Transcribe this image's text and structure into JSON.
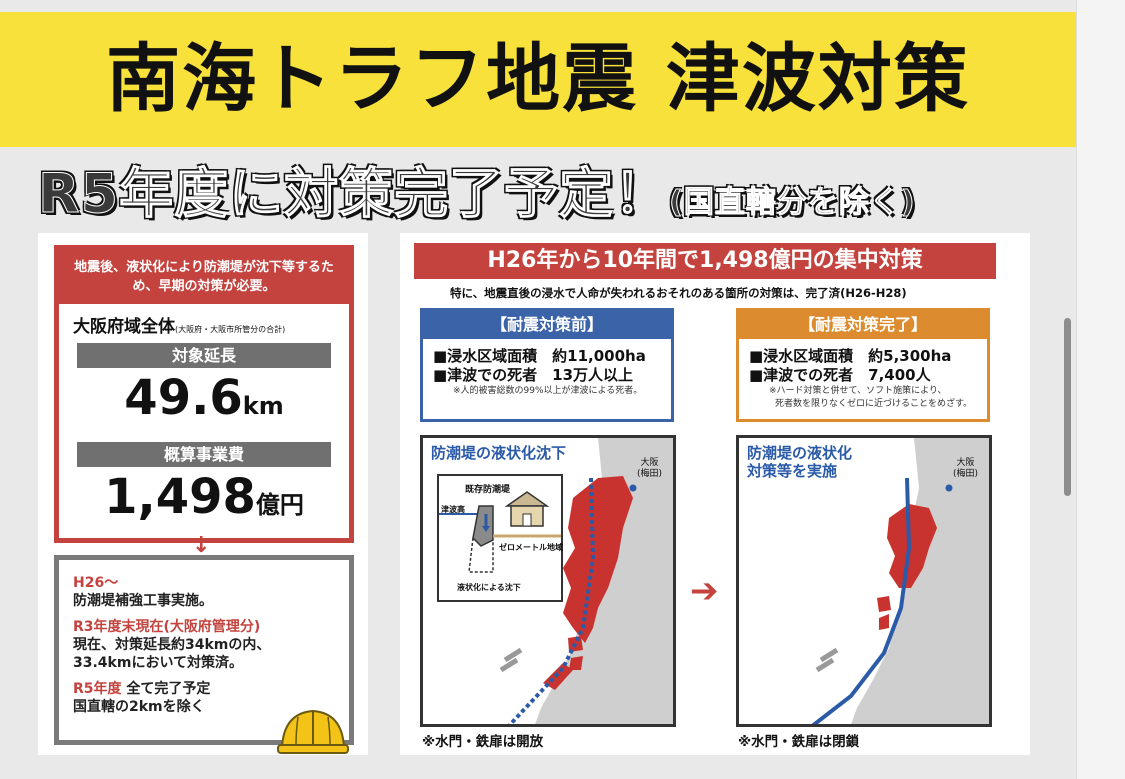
{
  "title": "南海トラフ地震 津波対策",
  "subtitle": {
    "main": "R5年度に対策完了予定！",
    "note": "(国直轄分を除く)"
  },
  "left": {
    "header": "地震後、液状化により防潮堤が沈下等するため、早期の対策が必要。",
    "region": "大阪府域全体",
    "region_note": "(大阪府・大阪市所管分の合計)",
    "length_label": "対象延長",
    "length_value": "49.6",
    "length_unit": "km",
    "cost_label": "概算事業費",
    "cost_value": "1,498",
    "cost_unit": "億円",
    "arrow": "↓",
    "steps": [
      {
        "head": "H26～",
        "body": "防潮堤補強工事実施。"
      },
      {
        "head": "R3年度末現在(大阪府管理分)",
        "body": "現在、対策延長約34kmの内、33.4kmにおいて対策済。"
      },
      {
        "head": "R5年度",
        "head_extra": " 全て完了予定",
        "body": "国直轄の2kmを除く"
      }
    ],
    "helmet_icon": "hard-hat-icon"
  },
  "right": {
    "banner": "H26年から10年間で1,498億円の集中対策",
    "note": "特に、地震直後の浸水で人命が失われるおそれのある箇所の対策は、完了済(H26-H28)",
    "before": {
      "head": "【耐震対策前】",
      "area": "■浸水区域面積　約11,000ha",
      "deaths": "■津波での死者　13万人以上",
      "footnote": "※人的被害総数の99%以上が津波による死者。"
    },
    "after": {
      "head": "【耐震対策完了】",
      "area": "■浸水区域面積　約5,300ha",
      "deaths": "■津波での死者　7,400人",
      "footnote1": "※ハード対策と併せて、ソフト施策により、",
      "footnote2": "死者数を限りなくゼロに近づけることをめざす。"
    },
    "map_before": {
      "title": "防潮堤の液状化沈下",
      "city": "大阪",
      "city_sub": "(梅田)",
      "inset_title": "既存防潮堤",
      "inset_tide": "津波高",
      "inset_zero": "ゼロメートル地域",
      "inset_sink": "液状化による沈下",
      "caption": "※水門・鉄扉は開放"
    },
    "map_after": {
      "title1": "防潮堤の液状化",
      "title2": "対策等を実施",
      "city": "大阪",
      "city_sub": "(梅田)",
      "caption": "※水門・鉄扉は閉鎖"
    },
    "mid_arrow": "➔"
  },
  "colors": {
    "title_yellow": "#f7e13a",
    "red": "#c4433e",
    "blue": "#3a63a8",
    "orange": "#dc8c2f",
    "gray": "#707070"
  }
}
